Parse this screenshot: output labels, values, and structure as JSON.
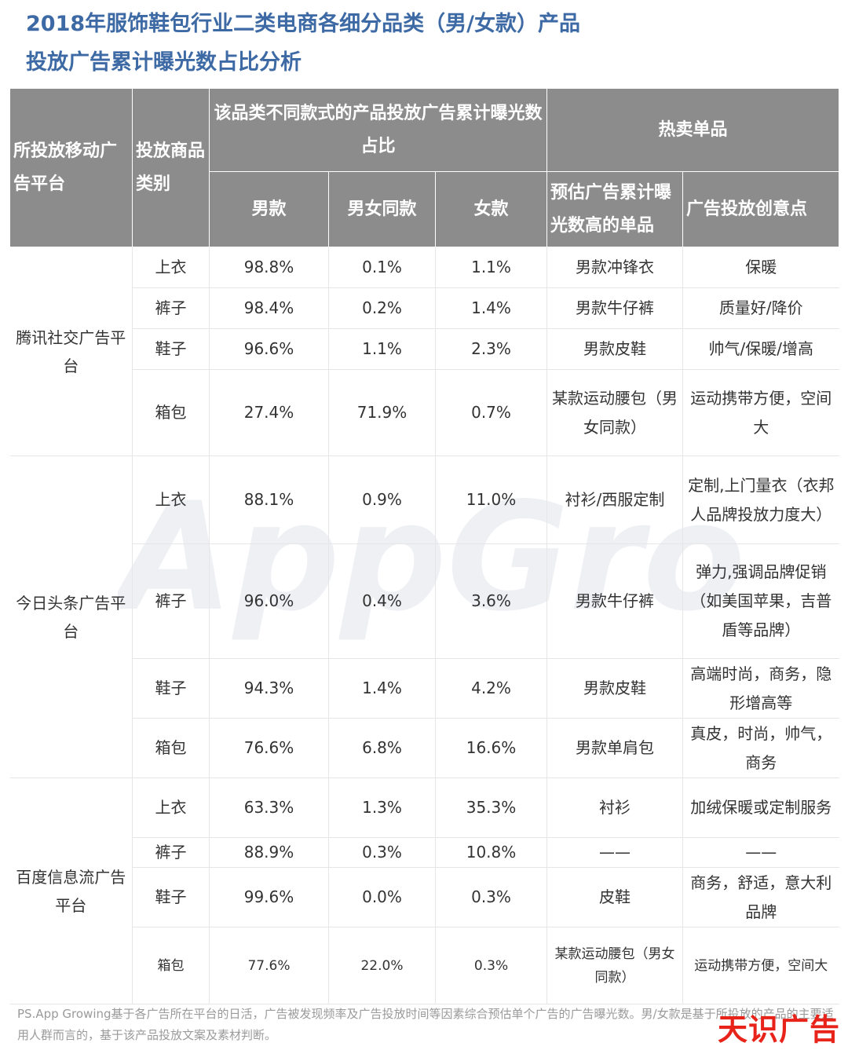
{
  "title_line1": "2018年服饰鞋包行业二类电商各细分品类（男/女款）产品",
  "title_line2": "投放广告累计曝光数占比分析",
  "watermark_text": "AppGrowing",
  "header": {
    "platform": "所投放移动广告平台",
    "category": "投放商品类别",
    "share_group": "该品类不同款式的产品投放广告累计曝光数占比",
    "men": "男款",
    "unisex": "男女同款",
    "women": "女款",
    "hot_group": "热卖单品",
    "top_item": "预估广告累计曝光数高的单品",
    "creative": "广告投放创意点"
  },
  "platforms": [
    {
      "name": "腾讯社交广告平台",
      "rows": [
        {
          "category": "上衣",
          "men": "98.8%",
          "unisex": "0.1%",
          "women": "1.1%",
          "item": "男款冲锋衣",
          "creative": "保暖"
        },
        {
          "category": "裤子",
          "men": "98.4%",
          "unisex": "0.2%",
          "women": "1.4%",
          "item": "男款牛仔裤",
          "creative": "质量好/降价"
        },
        {
          "category": "鞋子",
          "men": "96.6%",
          "unisex": "1.1%",
          "women": "2.3%",
          "item": "男款皮鞋",
          "creative": "帅气/保暖/增高"
        },
        {
          "category": "箱包",
          "men": "27.4%",
          "unisex": "71.9%",
          "women": "0.7%",
          "item": "某款运动腰包（男女同款）",
          "creative": "运动携带方便，空间大"
        }
      ]
    },
    {
      "name": "今日头条广告平台",
      "rows": [
        {
          "category": "上衣",
          "men": "88.1%",
          "unisex": "0.9%",
          "women": "11.0%",
          "item": "衬衫/西服定制",
          "creative": "定制,上门量衣（衣邦人品牌投放力度大）"
        },
        {
          "category": "裤子",
          "men": "96.0%",
          "unisex": "0.4%",
          "women": "3.6%",
          "item": "男款牛仔裤",
          "creative": "弹力,强调品牌促销（如美国苹果，吉普盾等品牌）"
        },
        {
          "category": "鞋子",
          "men": "94.3%",
          "unisex": "1.4%",
          "women": "4.2%",
          "item": "男款皮鞋",
          "creative": "高端时尚，商务，隐形增高等"
        },
        {
          "category": "箱包",
          "men": "76.6%",
          "unisex": "6.8%",
          "women": "16.6%",
          "item": "男款单肩包",
          "creative": "真皮，时尚，帅气，商务"
        }
      ]
    },
    {
      "name": "百度信息流广告平台",
      "rows": [
        {
          "category": "上衣",
          "men": "63.3%",
          "unisex": "1.3%",
          "women": "35.3%",
          "item": "衬衫",
          "creative": "加绒保暖或定制服务"
        },
        {
          "category": "裤子",
          "men": "88.9%",
          "unisex": "0.3%",
          "women": "10.8%",
          "item": "——",
          "creative": "——"
        },
        {
          "category": "鞋子",
          "men": "99.6%",
          "unisex": "0.0%",
          "women": "0.3%",
          "item": "皮鞋",
          "creative": "商务，舒适，意大利品牌"
        },
        {
          "category": "箱包",
          "men": "77.6%",
          "unisex": "22.0%",
          "women": "0.3%",
          "item": "某款运动腰包（男女同款）",
          "creative": "运动携带方便，空间大"
        }
      ]
    }
  ],
  "note": "PS.App Growing基于各广告所在平台的日活，广告被发现频率及广告投放时间等因素综合预估单个广告的广告曝光数。男/女款是基于所投放的产品的主要适用人群而言的，基于该产品投放文案及素材判断。",
  "logo": "天识广告",
  "colors": {
    "title": "#3d6aa5",
    "header_bg": "#8c8c8c",
    "logo": "#e8231a"
  }
}
